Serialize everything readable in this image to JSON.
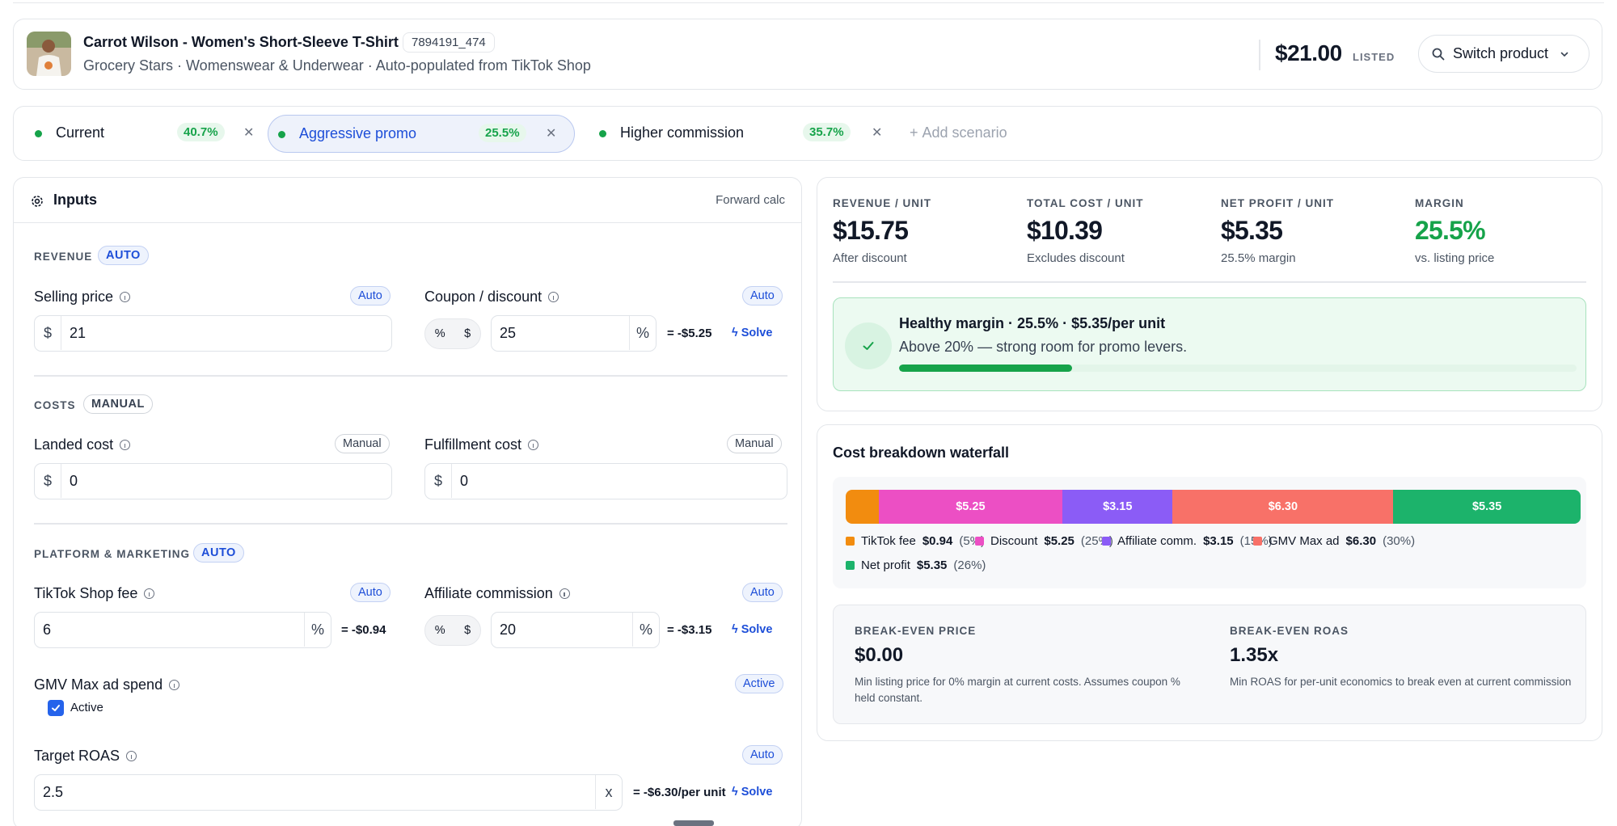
{
  "product": {
    "title": "Carrot Wilson - Women's Short-Sleeve T-Shirt",
    "sku": "7894191_474",
    "subtitle": "Grocery Stars · Womenswear & Underwear · Auto-populated from TikTok Shop",
    "price": "$21.00",
    "price_status": "LISTED",
    "switch_label": "Switch product"
  },
  "scenarios": [
    {
      "name": "Current",
      "margin": "40.7%",
      "active": false
    },
    {
      "name": "Aggressive promo",
      "margin": "25.5%",
      "active": true
    },
    {
      "name": "Higher commission",
      "margin": "35.7%",
      "active": false
    }
  ],
  "add_scenario_label": "Add scenario",
  "inputs": {
    "title": "Inputs",
    "mode": "Forward calc",
    "revenue": {
      "section": "REVENUE",
      "badge": "AUTO",
      "selling_price": {
        "label": "Selling price",
        "badge": "Auto",
        "prefix": "$",
        "value": "21"
      },
      "coupon": {
        "label": "Coupon / discount",
        "badge": "Auto",
        "toggle_pct": "%",
        "toggle_usd": "$",
        "value": "25",
        "suffix": "%",
        "result": "= -$5.25",
        "solve": "Solve"
      }
    },
    "costs": {
      "section": "COSTS",
      "badge": "MANUAL",
      "landed": {
        "label": "Landed cost",
        "badge": "Manual",
        "prefix": "$",
        "value": "0"
      },
      "fulfillment": {
        "label": "Fulfillment cost",
        "badge": "Manual",
        "prefix": "$",
        "value": "0"
      }
    },
    "platform": {
      "section": "PLATFORM & MARKETING",
      "badge": "AUTO",
      "tiktok_fee": {
        "label": "TikTok Shop fee",
        "badge": "Auto",
        "value": "6",
        "suffix": "%",
        "result": "= -$0.94"
      },
      "affiliate": {
        "label": "Affiliate commission",
        "badge": "Auto",
        "toggle_pct": "%",
        "toggle_usd": "$",
        "value": "20",
        "suffix": "%",
        "result": "= -$3.15",
        "solve": "Solve"
      },
      "gmv": {
        "label": "GMV Max ad spend",
        "badge": "Active",
        "checkbox_label": "Active",
        "checked": true
      },
      "roas": {
        "label": "Target ROAS",
        "badge": "Auto",
        "value": "2.5",
        "suffix": "x",
        "result": "= -$6.30/per unit",
        "solve": "Solve"
      }
    }
  },
  "summary": {
    "metrics": [
      {
        "label": "REVENUE / UNIT",
        "value": "$15.75",
        "sub": "After discount"
      },
      {
        "label": "TOTAL COST / UNIT",
        "value": "$10.39",
        "sub": "Excludes discount"
      },
      {
        "label": "NET PROFIT / UNIT",
        "value": "$5.35",
        "sub": "25.5% margin"
      },
      {
        "label": "MARGIN",
        "value": "25.5%",
        "sub": "vs. listing price"
      }
    ],
    "health": {
      "title": "Healthy margin · 25.5% · $5.35/per unit",
      "subtitle": "Above 20% — strong room for promo levers.",
      "progress": 0.255
    }
  },
  "waterfall": {
    "title": "Cost breakdown waterfall",
    "segments": [
      {
        "name": "TikTok fee",
        "value": 0.94,
        "amount": "$0.94",
        "pct": "(5%)",
        "color": "#f28c0f",
        "label": ""
      },
      {
        "name": "Discount",
        "value": 5.25,
        "amount": "$5.25",
        "pct": "(25%)",
        "color": "#ec4fc4",
        "label": "$5.25"
      },
      {
        "name": "Affiliate comm.",
        "value": 3.15,
        "amount": "$3.15",
        "pct": "(15%)",
        "color": "#8b5cf6",
        "label": "$3.15"
      },
      {
        "name": "GMV Max ad",
        "value": 6.3,
        "amount": "$6.30",
        "pct": "(30%)",
        "color": "#f87168",
        "label": "$6.30"
      },
      {
        "name": "Net profit",
        "value": 5.35,
        "amount": "$5.35",
        "pct": "(26%)",
        "color": "#1cb36b",
        "label": "$5.35"
      }
    ],
    "break_even_price": {
      "label": "BREAK-EVEN PRICE",
      "value": "$0.00",
      "desc": "Min listing price for 0% margin at current costs. Assumes coupon % held constant."
    },
    "break_even_roas": {
      "label": "BREAK-EVEN ROAS",
      "value": "1.35x",
      "desc": "Min ROAS for per-unit economics to break even at current commission"
    }
  }
}
